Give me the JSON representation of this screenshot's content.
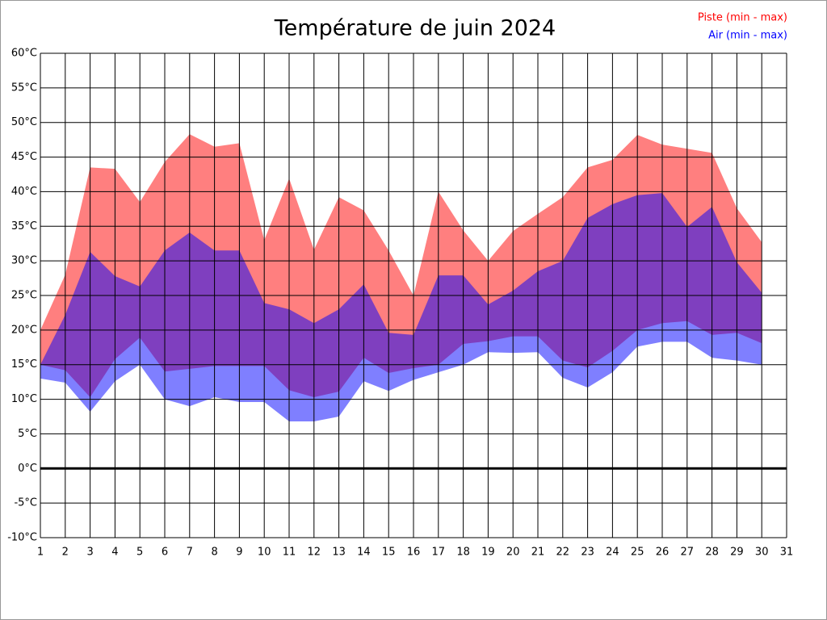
{
  "chart_data": {
    "type": "range-area",
    "title": "Température de juin 2024",
    "x": [
      1,
      2,
      3,
      4,
      5,
      6,
      7,
      8,
      9,
      10,
      11,
      12,
      13,
      14,
      15,
      16,
      17,
      18,
      19,
      20,
      21,
      22,
      23,
      24,
      25,
      26,
      27,
      28,
      29,
      30
    ],
    "series": [
      {
        "name": "Piste (min - max)",
        "color": "#ff0000",
        "low": [
          15,
          14.2,
          10.3,
          15.8,
          18.9,
          14,
          14.4,
          14.8,
          14.8,
          14.8,
          11.3,
          10.3,
          11.1,
          16,
          13.8,
          14.5,
          15,
          18,
          18.4,
          19.1,
          19.1,
          15.6,
          14.6,
          17,
          20,
          21,
          21.3,
          19.3,
          19.6,
          18.1
        ],
        "high": [
          20,
          28,
          43.5,
          43.3,
          38.5,
          44.3,
          48.3,
          46.5,
          47,
          33,
          41.9,
          31.6,
          39.2,
          37.3,
          31.5,
          25,
          40,
          34.4,
          30,
          34.3,
          36.8,
          39.2,
          43.5,
          44.6,
          48.2,
          46.8,
          46.2,
          45.6,
          37.6,
          32.7
        ]
      },
      {
        "name": "Air (min - max)",
        "color": "#0000ff",
        "low": [
          13,
          12.4,
          8.2,
          12.6,
          15,
          10,
          9,
          10.3,
          9.6,
          9.6,
          6.8,
          6.8,
          7.5,
          12.6,
          11.2,
          12.8,
          13.9,
          15,
          16.8,
          16.7,
          16.8,
          13.1,
          11.7,
          13.9,
          17.6,
          18.3,
          18.3,
          16,
          15.6,
          15
        ],
        "high": [
          15,
          22.2,
          31.3,
          27.8,
          26.3,
          31.5,
          34.1,
          31.5,
          31.5,
          23.9,
          23,
          21,
          23,
          26.6,
          19.6,
          19.3,
          27.9,
          27.9,
          23.7,
          25.7,
          28.5,
          30,
          36.2,
          38.2,
          39.5,
          39.8,
          34.9,
          37.8,
          29.8,
          25.4
        ]
      }
    ],
    "xlim": [
      1,
      31
    ],
    "xticks": [
      1,
      2,
      3,
      4,
      5,
      6,
      7,
      8,
      9,
      10,
      11,
      12,
      13,
      14,
      15,
      16,
      17,
      18,
      19,
      20,
      21,
      22,
      23,
      24,
      25,
      26,
      27,
      28,
      29,
      30,
      31
    ],
    "ylim": [
      -10,
      60
    ],
    "yticks": [
      {
        "value": -10,
        "label": "-10°C"
      },
      {
        "value": -5,
        "label": "-5°C"
      },
      {
        "value": 0,
        "label": "0°C"
      },
      {
        "value": 5,
        "label": "5°C"
      },
      {
        "value": 10,
        "label": "10°C"
      },
      {
        "value": 15,
        "label": "15°C"
      },
      {
        "value": 20,
        "label": "20°C"
      },
      {
        "value": 25,
        "label": "25°C"
      },
      {
        "value": 30,
        "label": "30°C"
      },
      {
        "value": 35,
        "label": "35°C"
      },
      {
        "value": 40,
        "label": "40°C"
      },
      {
        "value": 45,
        "label": "45°C"
      },
      {
        "value": 50,
        "label": "50°C"
      },
      {
        "value": 55,
        "label": "55°C"
      },
      {
        "value": 60,
        "label": "60°C"
      }
    ],
    "grid": true,
    "legend": "top-right"
  }
}
